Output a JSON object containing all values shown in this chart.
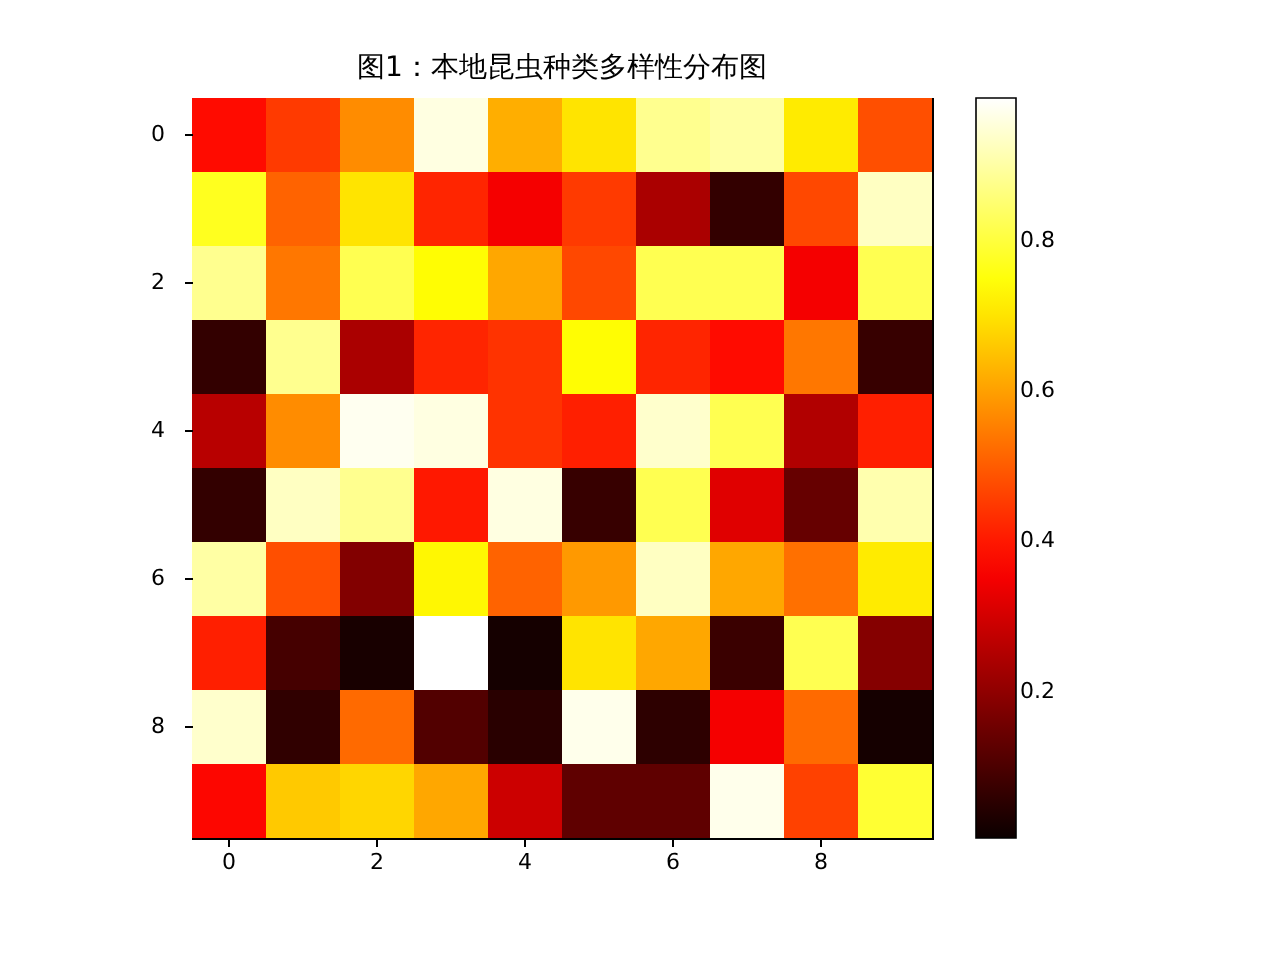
{
  "chart_data": {
    "type": "heatmap",
    "title": "图1：本地昆虫种类多样性分布图",
    "categories": [
      "0",
      null,
      "2",
      null,
      "4",
      null,
      "6",
      null,
      "8",
      null
    ],
    "y_categories": [
      "0",
      null,
      "2",
      null,
      "4",
      null,
      "6",
      null,
      "8",
      null
    ],
    "cells": [
      [
        0.38,
        0.45,
        0.57,
        0.96,
        0.62,
        0.7,
        0.88,
        0.9,
        0.71,
        0.48
      ],
      [
        0.77,
        0.51,
        0.7,
        0.42,
        0.35,
        0.45,
        0.24,
        0.065,
        0.47,
        0.93
      ],
      [
        0.88,
        0.54,
        0.82,
        0.74,
        0.61,
        0.47,
        0.82,
        0.82,
        0.35,
        0.82
      ],
      [
        0.065,
        0.88,
        0.24,
        0.42,
        0.44,
        0.74,
        0.42,
        0.38,
        0.54,
        0.07
      ],
      [
        0.26,
        0.57,
        0.975,
        0.96,
        0.44,
        0.41,
        0.94,
        0.82,
        0.25,
        0.41
      ],
      [
        0.065,
        0.93,
        0.88,
        0.4,
        0.96,
        0.07,
        0.82,
        0.32,
        0.14,
        0.91
      ],
      [
        0.9,
        0.48,
        0.18,
        0.73,
        0.51,
        0.59,
        0.93,
        0.61,
        0.53,
        0.71
      ],
      [
        0.41,
        0.09,
        0.025,
        0.99,
        0.02,
        0.7,
        0.61,
        0.075,
        0.82,
        0.185
      ],
      [
        0.94,
        0.06,
        0.52,
        0.11,
        0.05,
        0.97,
        0.055,
        0.35,
        0.52,
        0.02
      ],
      [
        0.37,
        0.66,
        0.68,
        0.61,
        0.29,
        0.13,
        0.13,
        0.97,
        0.46,
        0.79
      ]
    ],
    "clim": [
      0.005,
      0.99
    ],
    "cticks": [
      0.2,
      0.4,
      0.6,
      0.8
    ]
  }
}
